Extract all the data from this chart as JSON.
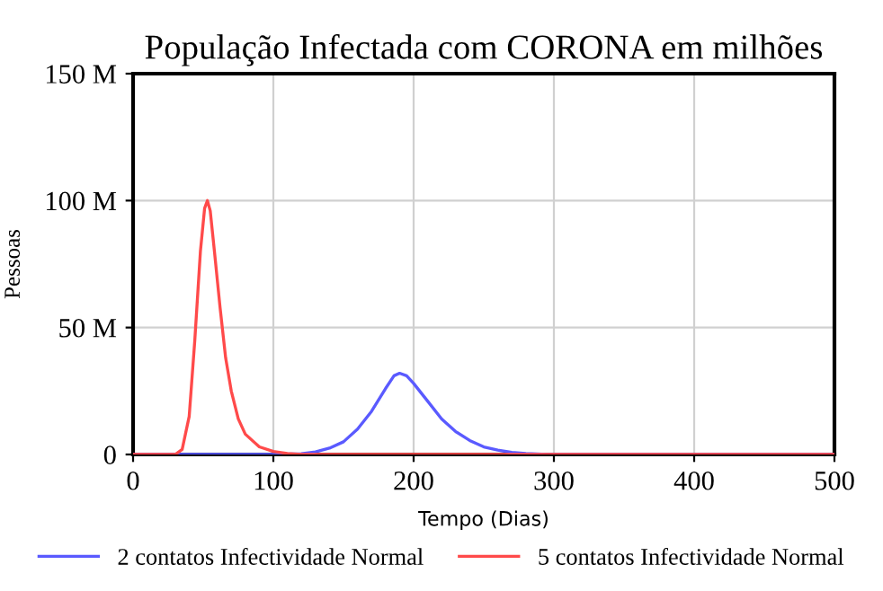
{
  "chart_data": {
    "type": "line",
    "title": "População Infectada com CORONA em milhões",
    "xlabel": "Tempo (Dias)",
    "ylabel": "Pessoas",
    "xlim": [
      0,
      500
    ],
    "xticks": [
      0,
      100,
      200,
      300,
      400,
      500
    ],
    "ylim": [
      0,
      150
    ],
    "yticks": [
      {
        "value": 0,
        "label": "0"
      },
      {
        "value": 50,
        "label": "50 M"
      },
      {
        "value": 100,
        "label": "100 M"
      },
      {
        "value": 150,
        "label": "150 M"
      }
    ],
    "grid": true,
    "legend": "bottom",
    "line_style": "solid",
    "marker": "none",
    "series": [
      {
        "name": "2 contatos Infectividade Normal",
        "color": "#5a5aff",
        "x": [
          0,
          100,
          120,
          130,
          140,
          150,
          160,
          170,
          180,
          186,
          190,
          195,
          200,
          210,
          220,
          230,
          240,
          250,
          260,
          270,
          280,
          295,
          500
        ],
        "values": [
          0,
          0,
          0.3,
          1,
          2.5,
          5,
          10,
          17,
          26,
          31,
          32,
          31,
          28,
          21,
          14,
          9,
          5.5,
          3,
          1.7,
          0.8,
          0.4,
          0,
          0
        ]
      },
      {
        "name": "5 contatos Infectividade Normal",
        "color": "#ff4a4a",
        "x": [
          0,
          30,
          35,
          40,
          44,
          48,
          51,
          53,
          55,
          58,
          62,
          66,
          70,
          75,
          80,
          90,
          100,
          110,
          120,
          500
        ],
        "values": [
          0,
          0,
          2,
          15,
          45,
          80,
          97,
          100,
          96,
          80,
          58,
          38,
          25,
          14,
          8,
          3,
          1.2,
          0.4,
          0,
          0
        ]
      }
    ]
  }
}
